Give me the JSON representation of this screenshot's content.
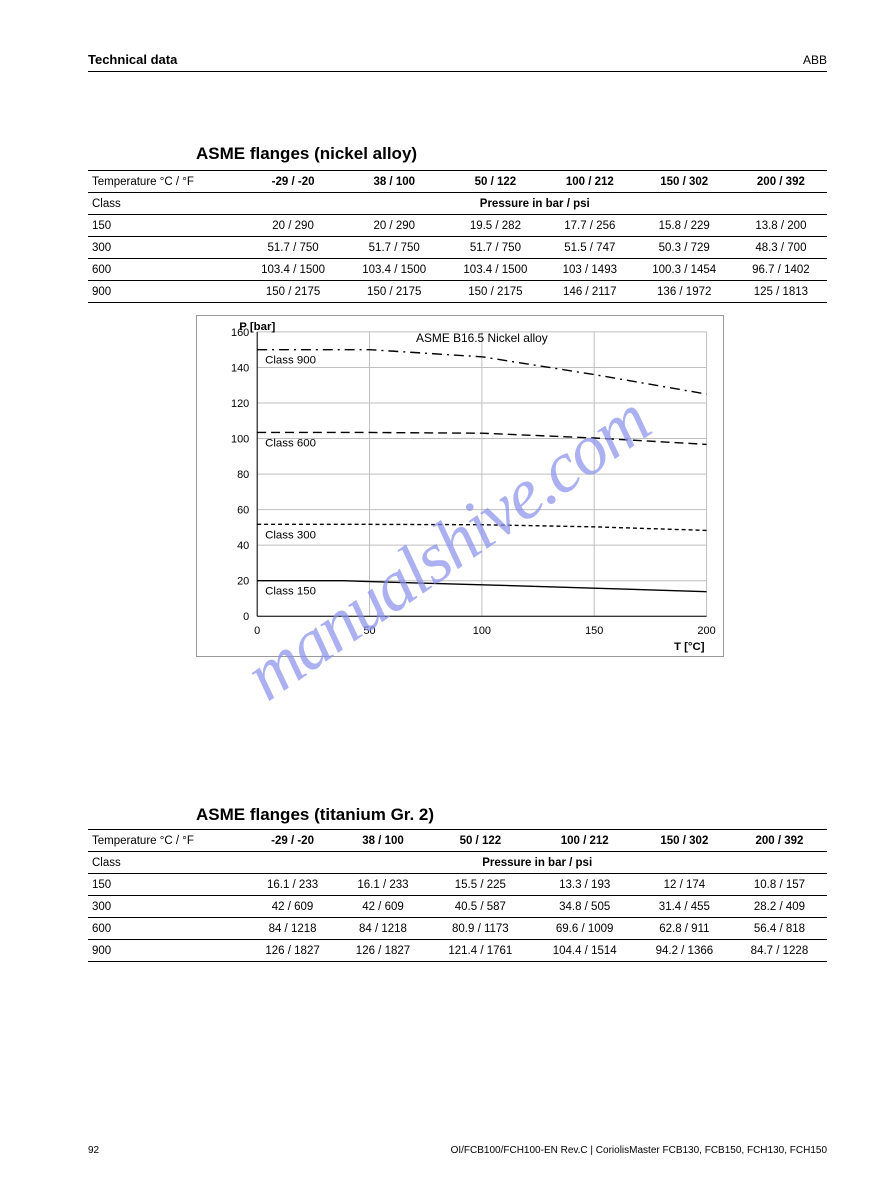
{
  "header": {
    "left": "Technical data",
    "right": "ABB"
  },
  "table_nickel": {
    "head": {
      "label": "Temperature",
      "units": "°C / °F",
      "cols": [
        "-29 / -20",
        "38 / 100",
        "50 / 122",
        "100 / 212",
        "150 / 302",
        "200 / 392"
      ]
    },
    "subhead": {
      "label": "Class",
      "text": "Pressure in bar / psi"
    },
    "rows": [
      {
        "label": "150",
        "cells": [
          "20 / 290",
          "20 / 290",
          "19.5 / 282",
          "17.7 / 256",
          "15.8 / 229",
          "13.8 / 200"
        ]
      },
      {
        "label": "300",
        "cells": [
          "51.7 / 750",
          "51.7 / 750",
          "51.7 / 750",
          "51.5 / 747",
          "50.3 / 729",
          "48.3 / 700"
        ]
      },
      {
        "label": "600",
        "cells": [
          "103.4 / 1500",
          "103.4 / 1500",
          "103.4 / 1500",
          "103 / 1493",
          "100.3 / 1454",
          "96.7 / 1402"
        ]
      },
      {
        "label": "900",
        "cells": [
          "150 / 2175",
          "150 / 2175",
          "150 / 2175",
          "146 / 2117",
          "136 / 1972",
          "125 / 1813"
        ]
      }
    ]
  },
  "chart": {
    "title": "ASME B16.5 Nickel alloy",
    "ylabel": "P [bar]",
    "xlabel": "T [°C]",
    "x": {
      "min": 0,
      "max": 200,
      "ticks": [
        0,
        50,
        100,
        150,
        200
      ]
    },
    "y": {
      "min": 0,
      "max": 160,
      "ticks": [
        0,
        20,
        40,
        60,
        80,
        100,
        120,
        140,
        160
      ]
    },
    "series": [
      {
        "name": "Class 150",
        "label": "Class 150",
        "dash": "none",
        "data": [
          [
            0,
            20
          ],
          [
            38,
            20
          ],
          [
            50,
            19.5
          ],
          [
            100,
            17.7
          ],
          [
            150,
            15.8
          ],
          [
            200,
            13.8
          ]
        ]
      },
      {
        "name": "Class 300",
        "label": "Class 300",
        "dash": "short",
        "data": [
          [
            0,
            51.7
          ],
          [
            38,
            51.7
          ],
          [
            50,
            51.7
          ],
          [
            100,
            51.5
          ],
          [
            150,
            50.3
          ],
          [
            200,
            48.3
          ]
        ]
      },
      {
        "name": "Class 600",
        "label": "Class 600",
        "dash": "long",
        "data": [
          [
            0,
            103.4
          ],
          [
            38,
            103.4
          ],
          [
            50,
            103.4
          ],
          [
            100,
            103
          ],
          [
            150,
            100.3
          ],
          [
            200,
            96.7
          ]
        ]
      },
      {
        "name": "Class 900",
        "label": "Class 900",
        "dash": "dashdot",
        "data": [
          [
            0,
            150
          ],
          [
            38,
            150
          ],
          [
            50,
            150
          ],
          [
            100,
            146
          ],
          [
            150,
            136
          ],
          [
            200,
            125
          ]
        ]
      }
    ],
    "colors": {
      "axis": "#000000",
      "grid": "#bfbfbf",
      "line": "#000000",
      "bg": "#ffffff",
      "title": "#000000",
      "tick": "#000000"
    },
    "line_width": 1.4,
    "label_fontsize": 11.5,
    "tick_fontsize": 11,
    "title_fontsize": 12
  },
  "section2_title": "ASME flanges (nickel alloy)",
  "section3_title": "ASME flanges (titanium Gr. 2)",
  "table_titanium": {
    "head": {
      "label": "Temperature",
      "units": "°C / °F",
      "cols": [
        "-29 / -20",
        "38 / 100",
        "50 / 122",
        "100 / 212",
        "150 / 302",
        "200 / 392"
      ]
    },
    "subhead": {
      "label": "Class",
      "text": "Pressure in bar / psi"
    },
    "rows": [
      {
        "label": "150",
        "cells": [
          "16.1 / 233",
          "16.1 / 233",
          "15.5 / 225",
          "13.3 / 193",
          "12 / 174",
          "10.8 / 157"
        ]
      },
      {
        "label": "300",
        "cells": [
          "42 / 609",
          "42 / 609",
          "40.5 / 587",
          "34.8 / 505",
          "31.4 / 455",
          "28.2 / 409"
        ]
      },
      {
        "label": "600",
        "cells": [
          "84 / 1218",
          "84 / 1218",
          "80.9 / 1173",
          "69.6 / 1009",
          "62.8 / 911",
          "56.4 / 818"
        ]
      },
      {
        "label": "900",
        "cells": [
          "126 / 1827",
          "126 / 1827",
          "121.4 / 1761",
          "104.4 / 1514",
          "94.2 / 1366",
          "84.7 / 1228"
        ]
      }
    ]
  },
  "footer": {
    "page": "92",
    "doc": "OI/FCB100/FCH100-EN Rev.C | CoriolisMaster FCB130, FCB150, FCH130, FCH150"
  }
}
